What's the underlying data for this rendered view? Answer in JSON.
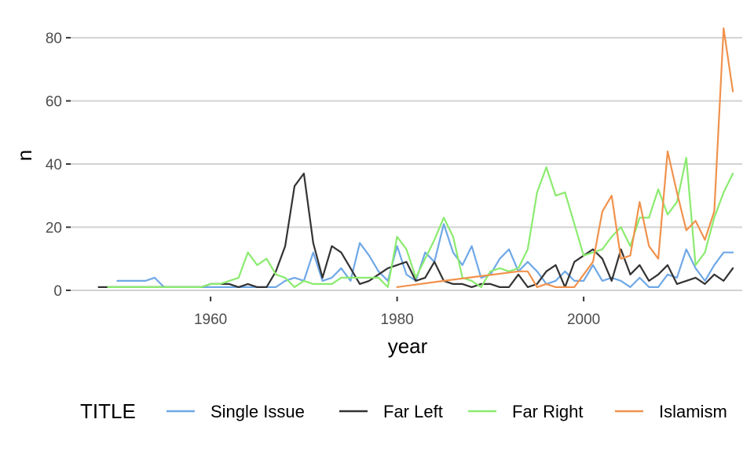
{
  "chart_data": {
    "type": "line",
    "title": "",
    "xlabel": "year",
    "ylabel": "n",
    "xlim": [
      1945,
      2017
    ],
    "ylim": [
      -2,
      85
    ],
    "x_ticks": [
      1960,
      1980,
      2000
    ],
    "y_ticks": [
      0,
      20,
      40,
      60,
      80
    ],
    "x_tick_labels": [
      "1960",
      "1980",
      "2000"
    ],
    "y_tick_labels": [
      "0",
      "20",
      "40",
      "60",
      "80"
    ],
    "grid": "horizontal major",
    "legend": {
      "title": "TITLE",
      "position": "bottom"
    },
    "series": [
      {
        "name": "Single Issue",
        "color": "#6FA8E6",
        "x": [
          1950,
          1951,
          1952,
          1953,
          1954,
          1955,
          1956,
          1957,
          1958,
          1959,
          1960,
          1961,
          1962,
          1963,
          1964,
          1965,
          1966,
          1967,
          1968,
          1969,
          1970,
          1971,
          1972,
          1973,
          1974,
          1975,
          1976,
          1977,
          1978,
          1979,
          1980,
          1981,
          1982,
          1983,
          1984,
          1985,
          1986,
          1987,
          1988,
          1989,
          1990,
          1991,
          1992,
          1993,
          1994,
          1995,
          1996,
          1997,
          1998,
          1999,
          2000,
          2001,
          2002,
          2003,
          2004,
          2005,
          2006,
          2007,
          2008,
          2009,
          2010,
          2011,
          2012,
          2013,
          2014,
          2015,
          2016
        ],
        "y": [
          3,
          3,
          3,
          3,
          4,
          1,
          1,
          1,
          1,
          1,
          1,
          1,
          1,
          1,
          1,
          1,
          1,
          1,
          3,
          4,
          3,
          12,
          3,
          4,
          7,
          3,
          15,
          11,
          6,
          3,
          14,
          5,
          3,
          12,
          9,
          21,
          12,
          8,
          14,
          4,
          5,
          10,
          13,
          6,
          9,
          6,
          2,
          3,
          6,
          3,
          3,
          8,
          3,
          4,
          3,
          1,
          4,
          1,
          1,
          5,
          4,
          13,
          7,
          3,
          8,
          12,
          12
        ]
      },
      {
        "name": "Far Left",
        "color": "#333333",
        "x": [
          1948,
          1949,
          1950,
          1951,
          1952,
          1953,
          1954,
          1955,
          1956,
          1957,
          1958,
          1959,
          1960,
          1961,
          1962,
          1963,
          1964,
          1965,
          1966,
          1967,
          1968,
          1969,
          1970,
          1971,
          1972,
          1973,
          1974,
          1975,
          1976,
          1977,
          1978,
          1979,
          1980,
          1981,
          1982,
          1983,
          1984,
          1985,
          1986,
          1987,
          1988,
          1989,
          1990,
          1991,
          1992,
          1993,
          1994,
          1995,
          1996,
          1997,
          1998,
          1999,
          2000,
          2001,
          2002,
          2003,
          2004,
          2005,
          2006,
          2007,
          2008,
          2009,
          2010,
          2011,
          2012,
          2013,
          2014,
          2015,
          2016
        ],
        "y": [
          1,
          1,
          1,
          1,
          1,
          1,
          1,
          1,
          1,
          1,
          1,
          1,
          2,
          2,
          2,
          1,
          2,
          1,
          1,
          6,
          14,
          33,
          37,
          15,
          4,
          14,
          12,
          7,
          2,
          3,
          5,
          7,
          8,
          9,
          3,
          4,
          9,
          3,
          2,
          2,
          1,
          2,
          2,
          1,
          1,
          5,
          1,
          2,
          6,
          8,
          1,
          9,
          11,
          13,
          10,
          3,
          13,
          5,
          8,
          3,
          5,
          8,
          2,
          3,
          4,
          2,
          5,
          3,
          7
        ]
      },
      {
        "name": "Far Right",
        "color": "#8BEB6F",
        "x": [
          1949,
          1950,
          1951,
          1952,
          1953,
          1954,
          1955,
          1956,
          1957,
          1958,
          1959,
          1960,
          1961,
          1962,
          1963,
          1964,
          1965,
          1966,
          1967,
          1968,
          1969,
          1970,
          1971,
          1972,
          1973,
          1974,
          1975,
          1976,
          1977,
          1978,
          1979,
          1980,
          1981,
          1982,
          1983,
          1984,
          1985,
          1986,
          1987,
          1988,
          1989,
          1990,
          1991,
          1992,
          1993,
          1994,
          1995,
          1996,
          1997,
          1998,
          1999,
          2000,
          2001,
          2002,
          2003,
          2004,
          2005,
          2006,
          2007,
          2008,
          2009,
          2010,
          2011,
          2012,
          2013,
          2014,
          2015,
          2016
        ],
        "y": [
          1,
          1,
          1,
          1,
          1,
          1,
          1,
          1,
          1,
          1,
          1,
          2,
          2,
          3,
          4,
          12,
          8,
          10,
          5,
          4,
          1,
          3,
          2,
          2,
          2,
          4,
          4,
          4,
          4,
          4,
          1,
          17,
          13,
          4,
          10,
          16,
          23,
          17,
          4,
          3,
          1,
          6,
          7,
          6,
          7,
          13,
          31,
          39,
          30,
          31,
          21,
          11,
          12,
          13,
          17,
          20,
          14,
          23,
          23,
          32,
          24,
          28,
          42,
          8,
          12,
          23,
          31,
          37
        ]
      },
      {
        "name": "Islamism",
        "color": "#F0924D",
        "x": [
          1980,
          1985,
          1993,
          1994,
          1995,
          1996,
          1997,
          1998,
          1999,
          2000,
          2001,
          2002,
          2003,
          2004,
          2005,
          2006,
          2007,
          2008,
          2009,
          2010,
          2011,
          2012,
          2013,
          2014,
          2015,
          2016
        ],
        "y": [
          1,
          3,
          6,
          6,
          1,
          2,
          1,
          1,
          1,
          5,
          9,
          25,
          30,
          10,
          11,
          28,
          14,
          10,
          44,
          31,
          19,
          22,
          16,
          25,
          83,
          63
        ]
      }
    ]
  }
}
